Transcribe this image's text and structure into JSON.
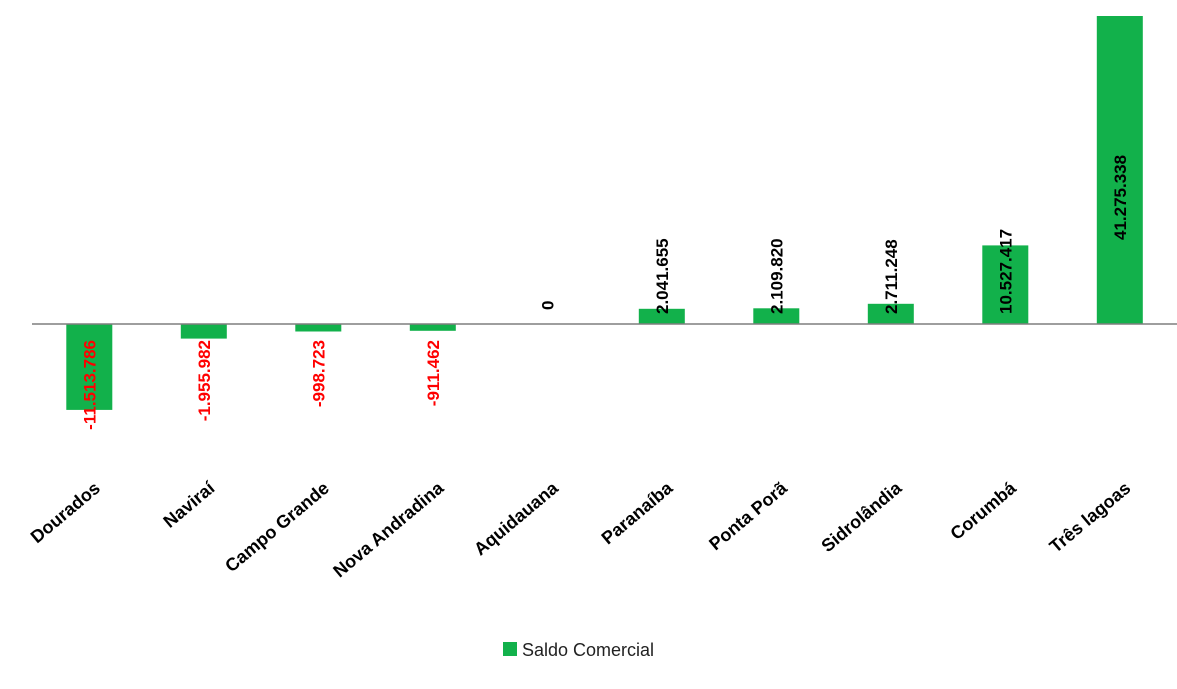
{
  "chart_data": {
    "type": "bar",
    "categories": [
      "Dourados",
      "Naviraí",
      "Campo Grande",
      "Nova Andradina",
      "Aquidauana",
      "Paranaíba",
      "Ponta Porã",
      "Sidrolândia",
      "Corumbá",
      "Três lagoas"
    ],
    "series": [
      {
        "name": "Saldo Comercial",
        "values": [
          -11513786,
          -1955982,
          -998723,
          -911462,
          0,
          2041655,
          2109820,
          2711248,
          10527417,
          41275338
        ],
        "labels": [
          "-11.513.786",
          "-1.955.982",
          "-998.723",
          "-911.462",
          "0",
          "2.041.655",
          "2.109.820",
          "2.711.248",
          "10.527.417",
          "41.275.338"
        ]
      }
    ],
    "ylim": [
      -25000000,
      41275338
    ],
    "grid": false,
    "legend": "bottom",
    "colors": {
      "bar": "#12b14b",
      "negative_label": "#ff0000",
      "positive_label": "#000000",
      "axis": "#7f7f7f"
    }
  }
}
